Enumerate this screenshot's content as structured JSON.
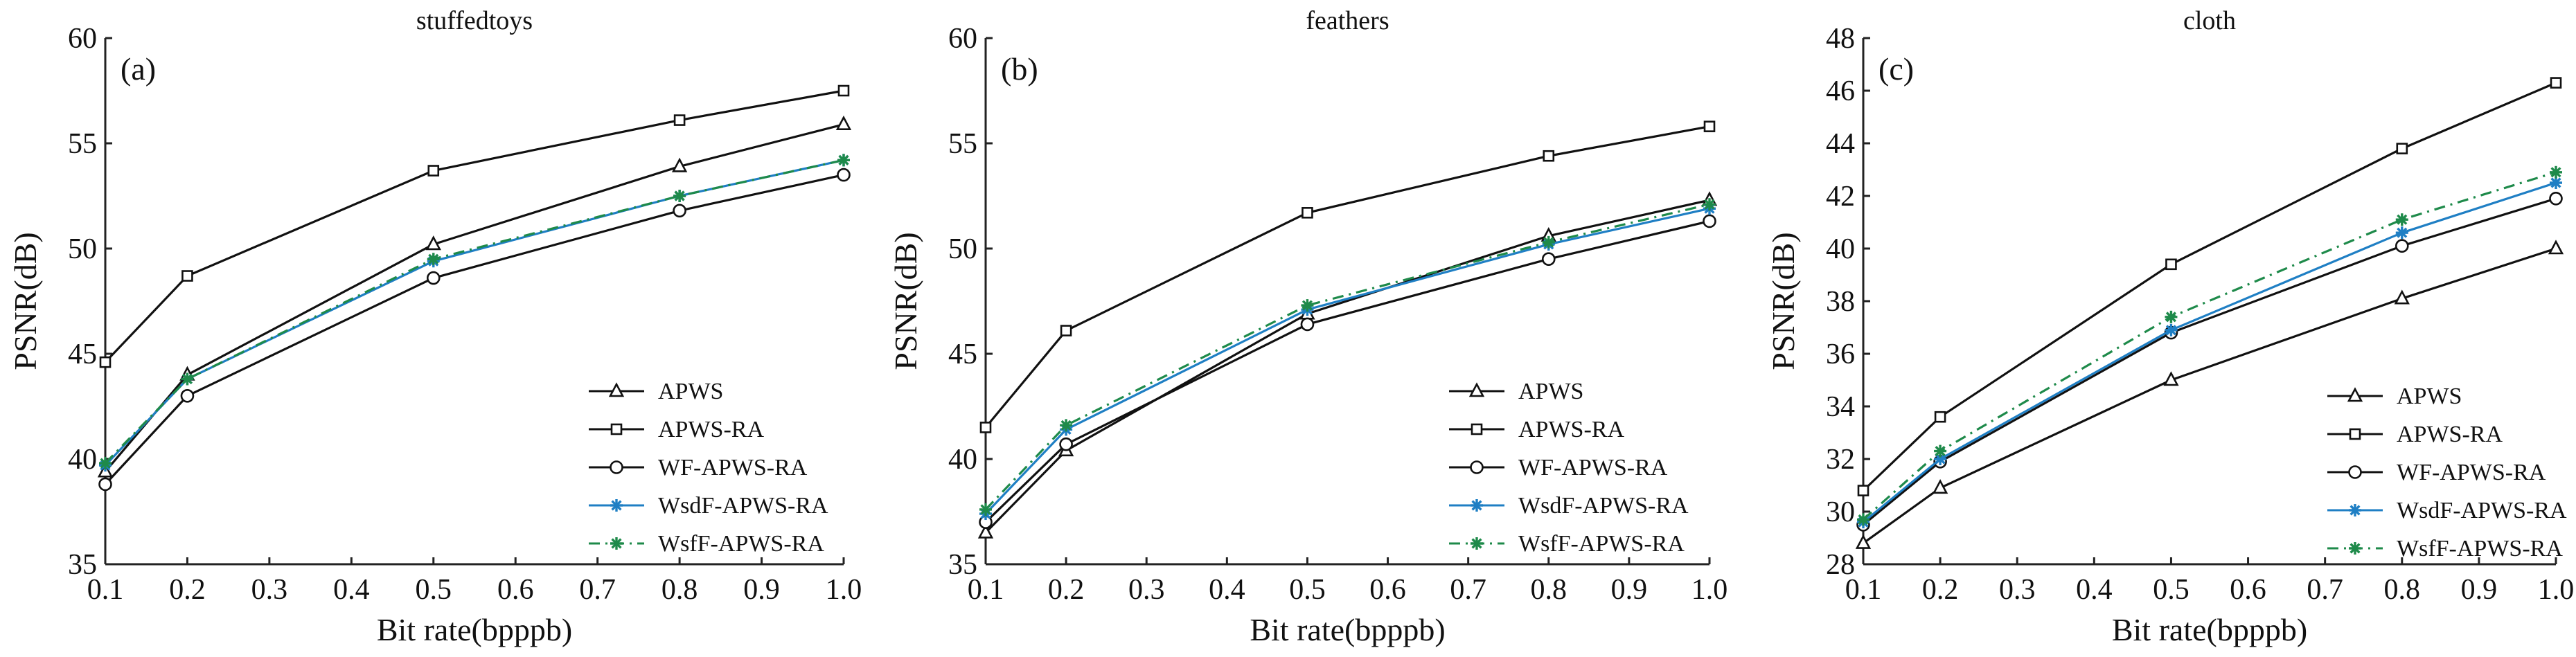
{
  "chart_data": [
    {
      "type": "line",
      "title": "stuffedtoys",
      "panel_label": "(a)",
      "xlabel": "Bit rate(bpppb)",
      "ylabel": "PSNR(dB)",
      "xlim": [
        0.1,
        1.0
      ],
      "ylim": [
        35,
        60
      ],
      "xticks": [
        0.1,
        0.2,
        0.3,
        0.4,
        0.5,
        0.6,
        0.7,
        0.8,
        0.9,
        1.0
      ],
      "xtick_labels": [
        "0.1",
        "0.2",
        "0.3",
        "0.4",
        "0.5",
        "0.6",
        "0.7",
        "0.8",
        "0.9",
        "1.0"
      ],
      "yticks": [
        35,
        40,
        45,
        50,
        55,
        60
      ],
      "ytick_labels": [
        "35",
        "40",
        "45",
        "50",
        "55",
        "60"
      ],
      "x": [
        0.1,
        0.2,
        0.5,
        0.8,
        1.0
      ],
      "legend_position": "lower-right",
      "grid": false,
      "series": [
        {
          "name": "APWS",
          "values": [
            39.4,
            44.0,
            50.2,
            53.9,
            55.9
          ]
        },
        {
          "name": "APWS-RA",
          "values": [
            44.6,
            48.7,
            53.7,
            56.1,
            57.5
          ]
        },
        {
          "name": "WF-APWS-RA",
          "values": [
            38.8,
            43.0,
            48.6,
            51.8,
            53.5
          ]
        },
        {
          "name": "WsdF-APWS-RA",
          "values": [
            39.7,
            43.8,
            49.4,
            52.5,
            54.2
          ]
        },
        {
          "name": "WsfF-APWS-RA",
          "values": [
            39.8,
            43.8,
            49.5,
            52.5,
            54.2
          ]
        }
      ]
    },
    {
      "type": "line",
      "title": "feathers",
      "panel_label": "(b)",
      "xlabel": "Bit rate(bpppb)",
      "ylabel": "PSNR(dB)",
      "xlim": [
        0.1,
        1.0
      ],
      "ylim": [
        35,
        60
      ],
      "xticks": [
        0.1,
        0.2,
        0.3,
        0.4,
        0.5,
        0.6,
        0.7,
        0.8,
        0.9,
        1.0
      ],
      "xtick_labels": [
        "0.1",
        "0.2",
        "0.3",
        "0.4",
        "0.5",
        "0.6",
        "0.7",
        "0.8",
        "0.9",
        "1.0"
      ],
      "yticks": [
        35,
        40,
        45,
        50,
        55,
        60
      ],
      "ytick_labels": [
        "35",
        "40",
        "45",
        "50",
        "55",
        "60"
      ],
      "x": [
        0.1,
        0.2,
        0.5,
        0.8,
        1.0
      ],
      "legend_position": "lower-right",
      "grid": false,
      "series": [
        {
          "name": "APWS",
          "values": [
            36.5,
            40.4,
            46.9,
            50.6,
            52.3
          ]
        },
        {
          "name": "APWS-RA",
          "values": [
            41.5,
            46.1,
            51.7,
            54.4,
            55.8
          ]
        },
        {
          "name": "WF-APWS-RA",
          "values": [
            37.0,
            40.7,
            46.4,
            49.5,
            51.3
          ]
        },
        {
          "name": "WsdF-APWS-RA",
          "values": [
            37.4,
            41.4,
            47.1,
            50.2,
            51.9
          ]
        },
        {
          "name": "WsfF-APWS-RA",
          "values": [
            37.6,
            41.6,
            47.3,
            50.3,
            52.1
          ]
        }
      ]
    },
    {
      "type": "line",
      "title": "cloth",
      "panel_label": "(c)",
      "xlabel": "Bit rate(bpppb)",
      "ylabel": "PSNR(dB)",
      "xlim": [
        0.1,
        1.0
      ],
      "ylim": [
        28,
        48
      ],
      "xticks": [
        0.1,
        0.2,
        0.3,
        0.4,
        0.5,
        0.6,
        0.7,
        0.8,
        0.9,
        1.0
      ],
      "xtick_labels": [
        "0.1",
        "0.2",
        "0.3",
        "0.4",
        "0.5",
        "0.6",
        "0.7",
        "0.8",
        "0.9",
        "1.0"
      ],
      "yticks": [
        28,
        30,
        32,
        34,
        36,
        38,
        40,
        42,
        44,
        46,
        48
      ],
      "ytick_labels": [
        "28",
        "30",
        "32",
        "34",
        "36",
        "38",
        "40",
        "42",
        "44",
        "46",
        "48"
      ],
      "x": [
        0.1,
        0.2,
        0.5,
        0.8,
        1.0
      ],
      "legend_position": "lower-right",
      "grid": false,
      "series": [
        {
          "name": "APWS",
          "values": [
            28.8,
            30.9,
            35.0,
            38.1,
            40.0
          ]
        },
        {
          "name": "APWS-RA",
          "values": [
            30.8,
            33.6,
            39.4,
            43.8,
            46.3
          ]
        },
        {
          "name": "WF-APWS-RA",
          "values": [
            29.5,
            31.9,
            36.8,
            40.1,
            41.9
          ]
        },
        {
          "name": "WsdF-APWS-RA",
          "values": [
            29.6,
            32.0,
            36.9,
            40.6,
            42.5
          ]
        },
        {
          "name": "WsfF-APWS-RA",
          "values": [
            29.7,
            32.3,
            37.4,
            41.1,
            42.9
          ]
        }
      ]
    }
  ],
  "series_styles": [
    {
      "name": "APWS",
      "color": "#111111",
      "marker": "triangle",
      "dash": "solid"
    },
    {
      "name": "APWS-RA",
      "color": "#111111",
      "marker": "square",
      "dash": "solid"
    },
    {
      "name": "WF-APWS-RA",
      "color": "#111111",
      "marker": "circle",
      "dash": "solid"
    },
    {
      "name": "WsdF-APWS-RA",
      "color": "#1f7fc4",
      "marker": "asterisk",
      "dash": "solid"
    },
    {
      "name": "WsfF-APWS-RA",
      "color": "#1e8a4a",
      "marker": "asterisk",
      "dash": "dashdot"
    }
  ]
}
